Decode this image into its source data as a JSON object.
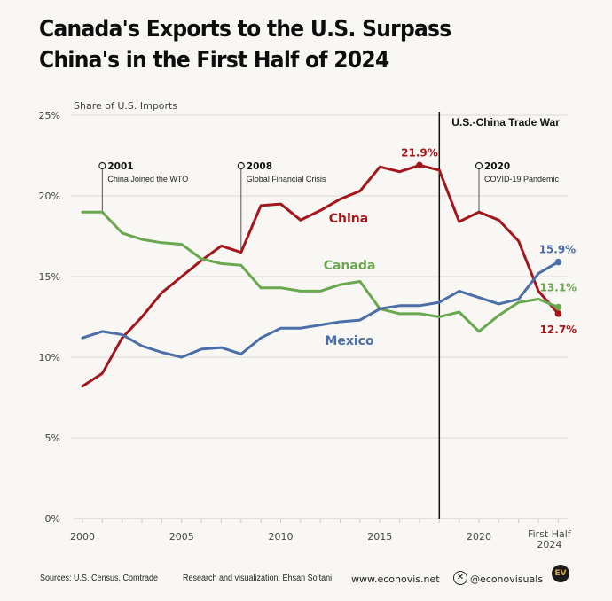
{
  "header": {
    "title_line1": "Canada's Exports to the U.S. Surpass",
    "title_line2": "China's in the First Half of 2024"
  },
  "chart_data": {
    "type": "line",
    "title": "Canada's Exports to the U.S. Surpass China's in the First Half of 2024",
    "ylabel": "Share of U.S. Imports",
    "xlabel": "",
    "ylim": [
      0,
      25
    ],
    "y_ticks": [
      0,
      5,
      10,
      15,
      20,
      25
    ],
    "y_tick_labels": [
      "0%",
      "5%",
      "10%",
      "15%",
      "20%",
      "25%"
    ],
    "x": [
      2000,
      2001,
      2002,
      2003,
      2004,
      2005,
      2006,
      2007,
      2008,
      2009,
      2010,
      2011,
      2012,
      2013,
      2014,
      2015,
      2016,
      2017,
      2018,
      2019,
      2020,
      2021,
      2022,
      2023,
      2024
    ],
    "x_tick_values": [
      2000,
      2005,
      2010,
      2015,
      2020,
      2024
    ],
    "x_tick_labels": [
      "2000",
      "2005",
      "2010",
      "2015",
      "2020",
      "First Half 2024"
    ],
    "grid": true,
    "series": [
      {
        "name": "China",
        "color": "#a3161c",
        "values": [
          8.2,
          9.0,
          11.2,
          12.5,
          14.0,
          15.0,
          16.0,
          16.9,
          16.5,
          19.4,
          19.5,
          18.5,
          19.1,
          19.8,
          20.3,
          21.8,
          21.5,
          21.9,
          21.6,
          18.4,
          19.0,
          18.5,
          17.2,
          14.1,
          12.7
        ],
        "label": "China",
        "highlights": [
          {
            "x": 2017,
            "value": 21.9,
            "label": "21.9%"
          },
          {
            "x": 2024,
            "value": 12.7,
            "label": "12.7%"
          }
        ]
      },
      {
        "name": "Canada",
        "color": "#6aa84f",
        "values": [
          19.0,
          19.0,
          17.7,
          17.3,
          17.1,
          17.0,
          16.1,
          15.8,
          15.7,
          14.3,
          14.3,
          14.1,
          14.1,
          14.5,
          14.7,
          13.0,
          12.7,
          12.7,
          12.5,
          12.8,
          11.6,
          12.6,
          13.4,
          13.6,
          13.1
        ],
        "label": "Canada",
        "highlights": [
          {
            "x": 2024,
            "value": 13.1,
            "label": "13.1%"
          }
        ]
      },
      {
        "name": "Mexico",
        "color": "#4a6fa8",
        "values": [
          11.2,
          11.6,
          11.4,
          10.7,
          10.3,
          10.0,
          10.5,
          10.6,
          10.2,
          11.2,
          11.8,
          11.8,
          12.0,
          12.2,
          12.3,
          13.0,
          13.2,
          13.2,
          13.4,
          14.1,
          13.7,
          13.3,
          13.6,
          15.2,
          15.9
        ],
        "label": "Mexico",
        "highlights": [
          {
            "x": 2024,
            "value": 15.9,
            "label": "15.9%"
          }
        ]
      }
    ],
    "annotations": [
      {
        "x": 2001,
        "year": "2001",
        "text": "China Joined the WTO"
      },
      {
        "x": 2008,
        "year": "2008",
        "text": "Global Financial Crisis"
      },
      {
        "x": 2020,
        "year": "2020",
        "text": "COVID-19 Pandemic"
      }
    ],
    "reference_line": {
      "x": 2018,
      "label": "U.S.-China Trade War"
    }
  },
  "footer": {
    "sources": "Sources: U.S. Census, Comtrade",
    "credit": "Research and visualization: Ehsan Soltani",
    "website": "www.econovis.net",
    "handle": "@econovisuals",
    "x_icon": "x-logo-icon",
    "brand_badge": "EV"
  }
}
